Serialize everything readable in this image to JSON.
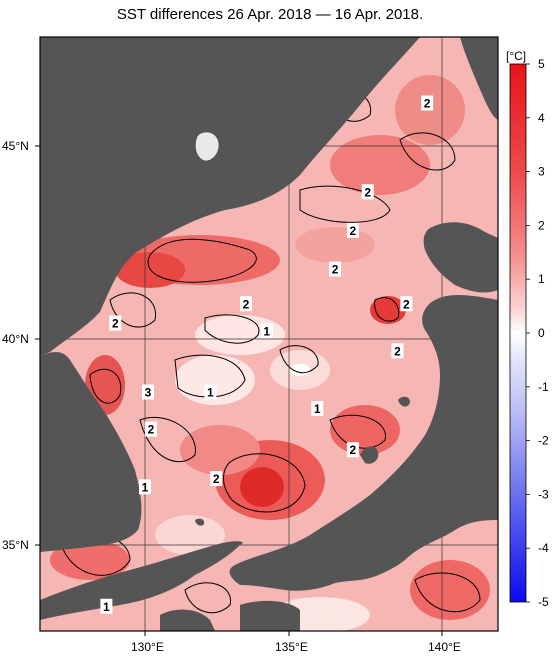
{
  "title": "SST differences 26 Apr. 2018 — 16 Apr. 2018.",
  "axes": {
    "lon_ticks": [
      {
        "lon": 130,
        "label": "130°E"
      },
      {
        "lon": 135,
        "label": "135°E"
      },
      {
        "lon": 140,
        "label": "140°E"
      }
    ],
    "lat_ticks": [
      {
        "lat": 45,
        "label": "45°N"
      },
      {
        "lat": 40,
        "label": "40°N"
      },
      {
        "lat": 35,
        "label": "35°N"
      }
    ],
    "lon_range": [
      127,
      142
    ],
    "lat_range": [
      33,
      47.8
    ]
  },
  "colorbar": {
    "unit": "[°C]",
    "range": [
      -5,
      5
    ],
    "tick_labels": [
      "5",
      "4",
      "3",
      "2",
      "1",
      "0",
      "-1",
      "-2",
      "-3",
      "-4",
      "-5"
    ],
    "colors": {
      "pos_strong": "#e8141a",
      "pos_mid": "#f07070",
      "pos_weak": "#f9c8c8",
      "zero": "#ffffff",
      "neg_weak": "#dde0fb",
      "neg_strong": "#1010f0",
      "land": "#555555"
    }
  },
  "contour_labels": [
    {
      "text": "2",
      "lon": 139.5,
      "lat": 46.1
    },
    {
      "text": "2",
      "lon": 137.5,
      "lat": 43.8
    },
    {
      "text": "2",
      "lon": 137.0,
      "lat": 42.8
    },
    {
      "text": "2",
      "lon": 136.4,
      "lat": 41.8
    },
    {
      "text": "2",
      "lon": 133.4,
      "lat": 40.9
    },
    {
      "text": "2",
      "lon": 138.8,
      "lat": 40.9
    },
    {
      "text": "2",
      "lon": 129.0,
      "lat": 40.4
    },
    {
      "text": "1",
      "lon": 134.1,
      "lat": 40.2
    },
    {
      "text": "2",
      "lon": 138.5,
      "lat": 39.7
    },
    {
      "text": "3",
      "lon": 130.1,
      "lat": 38.7
    },
    {
      "text": "1",
      "lon": 132.2,
      "lat": 38.7
    },
    {
      "text": "1",
      "lon": 135.8,
      "lat": 38.3
    },
    {
      "text": "2",
      "lon": 130.2,
      "lat": 37.8
    },
    {
      "text": "2",
      "lon": 137.0,
      "lat": 37.3
    },
    {
      "text": "2",
      "lon": 132.4,
      "lat": 36.6
    },
    {
      "text": "1",
      "lon": 130.0,
      "lat": 36.4
    },
    {
      "text": "1",
      "lon": 128.7,
      "lat": 33.5
    }
  ]
}
